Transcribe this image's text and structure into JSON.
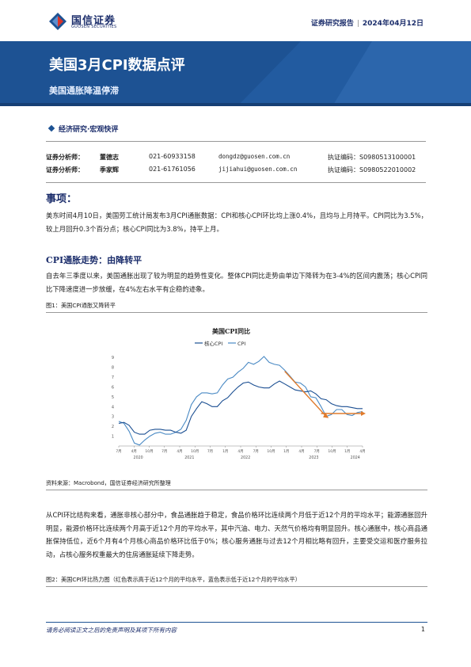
{
  "header": {
    "logo_cn": "国信证券",
    "logo_en": "GUOSEN SECURITIES",
    "report_type": "证券研究报告",
    "separator": "|",
    "date": "2024年04月12日"
  },
  "banner": {
    "title": "美国3月CPI数据点评",
    "subtitle": "美国通胀降温停滞"
  },
  "category": "经济研究·宏观快评",
  "analysts": [
    {
      "role": "证券分析师：",
      "name": "董德志",
      "phone": "021-60933158",
      "email": "dongdz@guosen.com.cn",
      "cert": "执证编码：S0980513100001"
    },
    {
      "role": "证券分析师：",
      "name": "季家辉",
      "phone": "021-61761056",
      "email": "jijiahui@guosen.com.cn",
      "cert": "执证编码：S0980522010002"
    }
  ],
  "section_heading": "事项：",
  "para1": "美东时间4月10日，美国劳工统计局发布3月CPI通胀数据：CPI和核心CPI环比均上涨0.4%，且均与上月持平。CPI同比为3.5%，较上月回升0.3个百分点；核心CPI同比为3.8%，持平上月。",
  "cpi_heading": "CPI通胀走势：由降转平",
  "para2": "自去年三季度以来，美国通胀出现了较为明显的趋势性变化。整体CPI同比走势由单边下降转为在3-4%的区间内震荡；核心CPI同比下降速度进一步放缓，在4%左右水平有企稳的迹象。",
  "fig1_caption": "图1：美国CPI通胀又降转平",
  "fig1_source": "资料来源：Macrobond，国信证券经济研究所整理",
  "para3": "从CPI环比结构来看，通胀非核心部分中，食品通胀趋于稳定，食品价格环比连续两个月低于近12个月的平均水平；能源通胀回升明显，能源价格环比连续两个月高于近12个月的平均水平，其中汽油、电力、天然气价格均有明显回升。核心通胀中，核心商品通胀保持低位，近6个月有4个月核心商品价格环比低于0%；核心服务通胀与过去12个月相比略有回升，主要受交运和医疗服务拉动，占核心服务权重最大的住房通胀延续下降走势。",
  "fig2_caption": "图2：美国CPI环比热力图（红色表示高于近12个月的平均水平，蓝色表示低于近12个月的平均水平）",
  "footer": {
    "disclaimer": "请务必阅读正文之后的免责声明及其项下所有内容",
    "page": "1"
  },
  "colors": {
    "brand_blue": "#1d5293",
    "cpi_line": "#4a8ac4",
    "core_line": "#1b4f92",
    "arrow": "#e07b2c"
  },
  "chart_data": {
    "type": "line",
    "title": "美国CPI同比",
    "legend": [
      "核心CPI",
      "CPI"
    ],
    "x_tick_labels": [
      "7月",
      "4月",
      "10月",
      "7月",
      "4月",
      "10月",
      "7月",
      "1月",
      "4月",
      "7月",
      "10月",
      "1月",
      "4月",
      "7月",
      "10月",
      "1月",
      "4月"
    ],
    "year_labels": [
      "2020",
      "2021",
      "2022",
      "2023",
      "2024"
    ],
    "y_tick_labels": [
      "1",
      "2",
      "3",
      "4",
      "5",
      "6",
      "7",
      "8",
      "9"
    ],
    "ylim": [
      0,
      9.5
    ],
    "series": [
      {
        "name": "CPI",
        "x": [
          0,
          1,
          2,
          3,
          4,
          5,
          6,
          7,
          8,
          9,
          10,
          11,
          12,
          13,
          14,
          15,
          16,
          17,
          18,
          19,
          20,
          21,
          22,
          23,
          24,
          25,
          26,
          27,
          28,
          29,
          30,
          31,
          32,
          33,
          34,
          35,
          36,
          37,
          38,
          39,
          40,
          41,
          42,
          43,
          44,
          45,
          46,
          47
        ],
        "values": [
          2.5,
          2.3,
          1.5,
          0.3,
          0.1,
          0.6,
          1.0,
          1.3,
          1.4,
          1.2,
          1.2,
          1.4,
          1.7,
          2.6,
          4.2,
          5.0,
          5.4,
          5.4,
          5.3,
          5.4,
          6.2,
          6.8,
          7.0,
          7.5,
          7.9,
          8.5,
          8.3,
          8.6,
          9.1,
          8.5,
          8.3,
          8.2,
          7.7,
          7.1,
          6.5,
          6.4,
          6.0,
          5.0,
          4.9,
          4.0,
          3.0,
          3.2,
          3.7,
          3.7,
          3.2,
          3.1,
          3.4,
          3.5
        ]
      },
      {
        "name": "核心CPI",
        "x": [
          0,
          1,
          2,
          3,
          4,
          5,
          6,
          7,
          8,
          9,
          10,
          11,
          12,
          13,
          14,
          15,
          16,
          17,
          18,
          19,
          20,
          21,
          22,
          23,
          24,
          25,
          26,
          27,
          28,
          29,
          30,
          31,
          32,
          33,
          34,
          35,
          36,
          37,
          38,
          39,
          40,
          41,
          42,
          43,
          44,
          45,
          46,
          47
        ],
        "values": [
          2.3,
          2.4,
          2.1,
          1.4,
          1.2,
          1.2,
          1.6,
          1.7,
          1.7,
          1.6,
          1.6,
          1.4,
          1.3,
          1.6,
          3.0,
          3.8,
          4.5,
          4.3,
          4.0,
          4.0,
          4.6,
          4.9,
          5.5,
          6.0,
          6.4,
          6.5,
          6.2,
          6.0,
          5.9,
          5.9,
          6.3,
          6.6,
          6.3,
          6.0,
          5.7,
          5.6,
          5.5,
          5.6,
          5.3,
          4.8,
          4.7,
          4.3,
          4.1,
          4.0,
          4.0,
          3.9,
          3.8,
          3.8
        ]
      }
    ]
  }
}
